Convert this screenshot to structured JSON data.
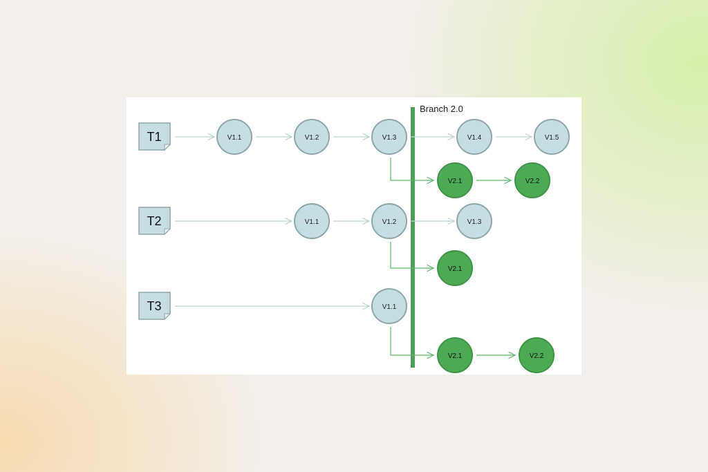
{
  "branch_label": "Branch 2.0",
  "colors": {
    "trunk_fill": "#c6dee1",
    "trunk_stroke": "#8ea6aa",
    "branch_fill": "#4caa55",
    "branch_stroke": "#3f9248",
    "branch_bar": "#4e9e57",
    "trunk_arrow": "#bcd3d8",
    "branch_arrow": "#5dbb68"
  },
  "rows": [
    {
      "tag": "T1",
      "trunk": [
        "V1.1",
        "V1.2",
        "V1.3",
        "V1.4",
        "V1.5"
      ],
      "branch": [
        "V2.1",
        "V2.2"
      ]
    },
    {
      "tag": "T2",
      "trunk": [
        "V1.1",
        "V1.2",
        "V1.3"
      ],
      "branch": [
        "V2.1"
      ]
    },
    {
      "tag": "T3",
      "trunk": [
        "V1.1"
      ],
      "branch": [
        "V2.1",
        "V2.2"
      ]
    }
  ]
}
